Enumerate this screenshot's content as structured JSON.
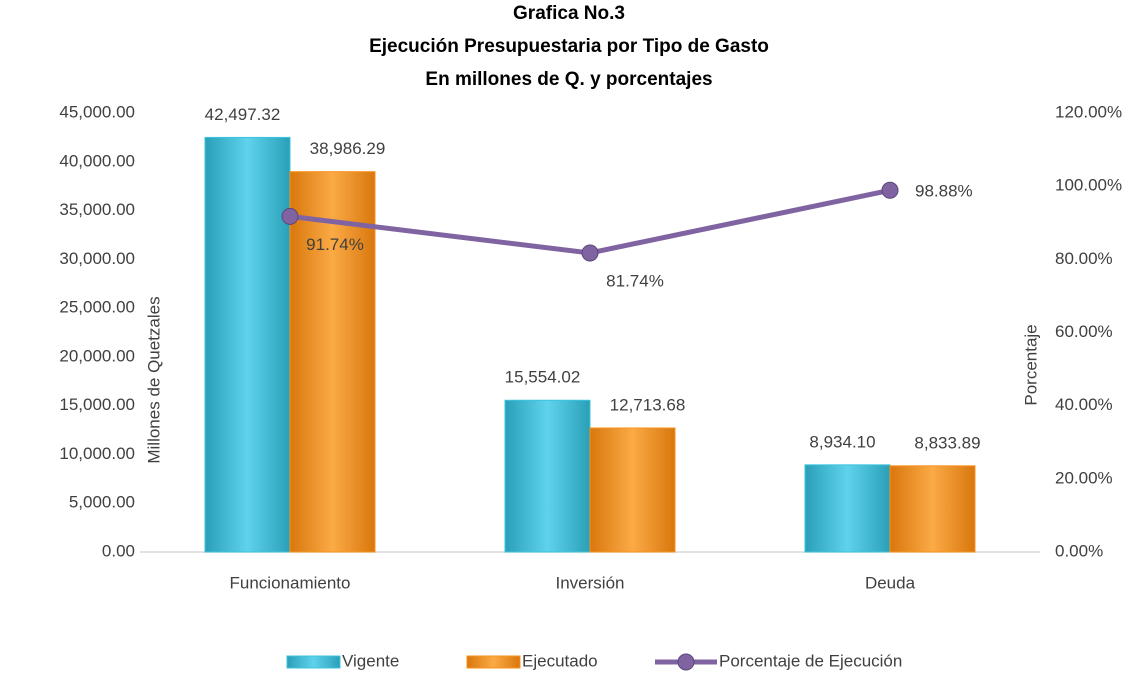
{
  "chart_data": {
    "type": "bar",
    "title": [
      "Grafica No.3",
      "Ejecución Presupuestaria por Tipo de Gasto",
      "En millones de Q. y porcentajes"
    ],
    "y_label": "Millones de Quetzales",
    "y2_label": "Porcentaje",
    "categories": [
      "Funcionamiento",
      "Inversión",
      "Deuda"
    ],
    "series": [
      {
        "name": "Vigente",
        "type": "bar",
        "color": "#3cc3df",
        "values": [
          42497.32,
          15554.02,
          8934.1
        ],
        "value_labels": [
          "42,497.32",
          "15,554.02",
          "8,934.10"
        ]
      },
      {
        "name": "Ejecutado",
        "type": "bar",
        "color": "#f7931e",
        "values": [
          38986.29,
          12713.68,
          8833.89
        ],
        "value_labels": [
          "38,986.29",
          "12,713.68",
          "8,833.89"
        ]
      },
      {
        "name": "Porcentaje de Ejecución",
        "type": "line",
        "axis": "y2",
        "color": "#8064a2",
        "values": [
          91.74,
          81.74,
          98.88
        ],
        "value_labels": [
          "91.74%",
          "81.74%",
          "98.88%"
        ]
      }
    ],
    "ylim": [
      0,
      45000
    ],
    "yticks": [
      {
        "value": 0,
        "label": "0.00"
      },
      {
        "value": 5000,
        "label": "5,000.00"
      },
      {
        "value": 10000,
        "label": "10,000.00"
      },
      {
        "value": 15000,
        "label": "15,000.00"
      },
      {
        "value": 20000,
        "label": "20,000.00"
      },
      {
        "value": 25000,
        "label": "25,000.00"
      },
      {
        "value": 30000,
        "label": "30,000.00"
      },
      {
        "value": 35000,
        "label": "35,000.00"
      },
      {
        "value": 40000,
        "label": "40,000.00"
      },
      {
        "value": 45000,
        "label": "45,000.00"
      }
    ],
    "y2lim": [
      0,
      120
    ],
    "y2ticks": [
      {
        "value": 0,
        "label": "0.00%"
      },
      {
        "value": 20,
        "label": "20.00%"
      },
      {
        "value": 40,
        "label": "40.00%"
      },
      {
        "value": 60,
        "label": "60.00%"
      },
      {
        "value": 80,
        "label": "80.00%"
      },
      {
        "value": 100,
        "label": "100.00%"
      },
      {
        "value": 120,
        "label": "120.00%"
      }
    ],
    "grid": false,
    "legend": "bottom"
  }
}
